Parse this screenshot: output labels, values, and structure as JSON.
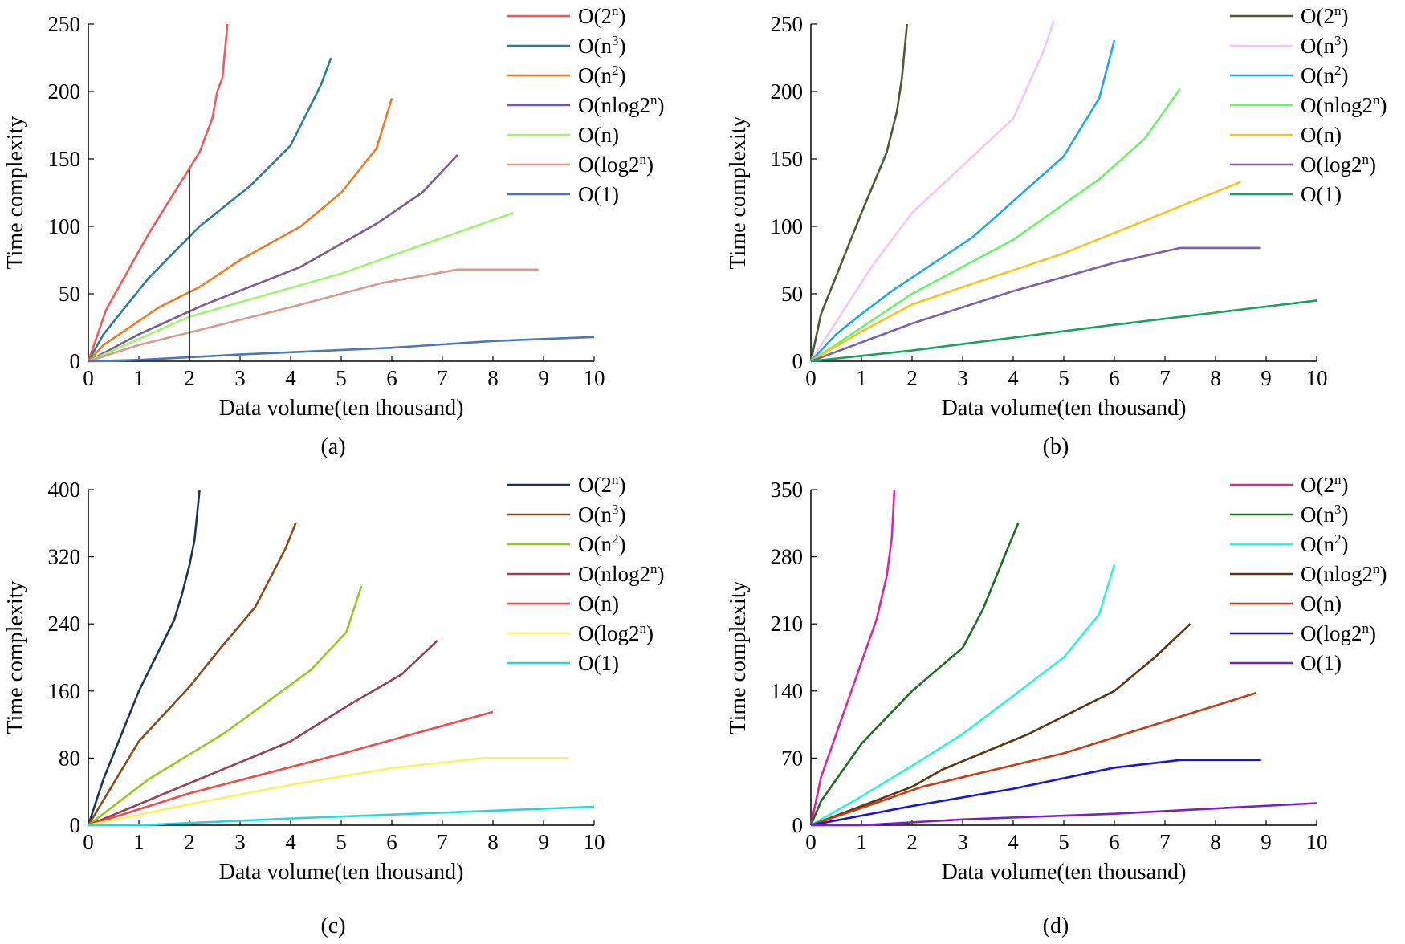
{
  "chart_data": [
    {
      "type": "line",
      "caption": "(a)",
      "xlabel": "Data volume(ten thousand)",
      "ylabel": "Time complexity",
      "xlim": [
        0,
        10
      ],
      "ylim": [
        0,
        250
      ],
      "xticks": [
        "0",
        "1",
        "2",
        "3",
        "4",
        "5",
        "6",
        "7",
        "8",
        "9",
        "10"
      ],
      "yticks": [
        0,
        50,
        100,
        150,
        200,
        250
      ],
      "annotations": [
        {
          "type": "vertical-line",
          "x": 2,
          "y_from": 0,
          "y_to": 142
        }
      ],
      "series": [
        {
          "name": "O(2ⁿ)",
          "base": "O(2",
          "sup": "n",
          "tail": ")",
          "color": "#f05a5a",
          "x": [
            0,
            0.35,
            1.2,
            2.2,
            2.45,
            2.55,
            2.65,
            2.75
          ],
          "y": [
            0,
            38,
            95,
            155,
            180,
            200,
            210,
            250
          ]
        },
        {
          "name": "O(n³)",
          "base": "O(n",
          "sup": "3",
          "tail": ")",
          "color": "#2b7e8c",
          "x": [
            0,
            0.3,
            1.2,
            2.2,
            3.2,
            4.0,
            4.6,
            4.8
          ],
          "y": [
            0,
            20,
            62,
            100,
            130,
            160,
            205,
            225
          ]
        },
        {
          "name": "O(n²)",
          "base": "O(n",
          "sup": "2",
          "tail": ")",
          "color": "#ee7a22",
          "x": [
            0,
            0.3,
            1.4,
            2.2,
            3.0,
            4.2,
            5.0,
            5.7,
            6.0
          ],
          "y": [
            0,
            12,
            40,
            55,
            75,
            100,
            125,
            158,
            195
          ]
        },
        {
          "name": "O(nlog2ⁿ)",
          "base": "O(nlog2",
          "sup": "n",
          "tail": ")",
          "color": "#7b5a9c",
          "x": [
            0,
            1.0,
            2.3,
            4.2,
            5.7,
            6.6,
            7.3
          ],
          "y": [
            0,
            20,
            42,
            70,
            102,
            125,
            153
          ]
        },
        {
          "name": "O(n)",
          "base": "O(n",
          "sup": "",
          "tail": ")",
          "color": "#9cf56a",
          "x": [
            0,
            2.0,
            5.0,
            8.4
          ],
          "y": [
            0,
            33,
            65,
            110
          ]
        },
        {
          "name": "O(log2ⁿ)",
          "base": "O(log2",
          "sup": "n",
          "tail": ")",
          "color": "#d99a8e",
          "x": [
            0,
            1.0,
            4.0,
            5.8,
            7.3,
            8.9
          ],
          "y": [
            0,
            12,
            40,
            58,
            68,
            68
          ]
        },
        {
          "name": "O(1)",
          "base": "O(1",
          "sup": "",
          "tail": ")",
          "color": "#4c76b5",
          "x": [
            0,
            1.0,
            3.0,
            6.0,
            8.0,
            10.0
          ],
          "y": [
            0,
            1,
            5,
            10,
            15,
            18
          ]
        }
      ]
    },
    {
      "type": "line",
      "caption": "(b)",
      "xlabel": "Data volume(ten thousand)",
      "ylabel": "Time complexity",
      "xlim": [
        0,
        10
      ],
      "ylim": [
        0,
        250
      ],
      "xticks": [
        "0",
        "1",
        "2",
        "3",
        "4",
        "5",
        "6",
        "7",
        "8",
        "9",
        "10"
      ],
      "yticks": [
        0,
        50,
        100,
        150,
        200,
        250
      ],
      "series": [
        {
          "name": "O(2ⁿ)",
          "base": "O(2",
          "sup": "n",
          "tail": ")",
          "color": "#4e5a30",
          "x": [
            0,
            0.2,
            1.0,
            1.5,
            1.7,
            1.8,
            1.9
          ],
          "y": [
            0,
            35,
            110,
            155,
            185,
            210,
            250
          ]
        },
        {
          "name": "O(n³)",
          "base": "O(n",
          "sup": "3",
          "tail": ")",
          "color": "#f8c5f2",
          "x": [
            0,
            0.6,
            1.2,
            2.0,
            3.0,
            4.0,
            4.6,
            4.8
          ],
          "y": [
            0,
            35,
            70,
            110,
            145,
            180,
            230,
            252
          ]
        },
        {
          "name": "O(n²)",
          "base": "O(n",
          "sup": "2",
          "tail": ")",
          "color": "#1eaae6",
          "x": [
            0,
            0.5,
            1.0,
            1.6,
            3.2,
            5.0,
            5.7,
            6.0
          ],
          "y": [
            0,
            20,
            35,
            52,
            92,
            152,
            195,
            238
          ]
        },
        {
          "name": "O(nlog2ⁿ)",
          "base": "O(nlog2",
          "sup": "n",
          "tail": ")",
          "color": "#6af26a",
          "x": [
            0,
            2.0,
            4.0,
            5.7,
            6.6,
            7.3
          ],
          "y": [
            0,
            50,
            90,
            135,
            165,
            202
          ]
        },
        {
          "name": "O(n)",
          "base": "O(n",
          "sup": "",
          "tail": ")",
          "color": "#f5c51d",
          "x": [
            0,
            1.0,
            2.0,
            3.0,
            5.0,
            8.5
          ],
          "y": [
            0,
            22,
            42,
            55,
            80,
            133
          ]
        },
        {
          "name": "O(log2ⁿ)",
          "base": "O(log2",
          "sup": "n",
          "tail": ")",
          "color": "#7a5fad",
          "x": [
            0,
            2.0,
            4.0,
            6.0,
            7.3,
            8.9
          ],
          "y": [
            0,
            28,
            52,
            73,
            84,
            84
          ]
        },
        {
          "name": "O(1)",
          "base": "O(1",
          "sup": "",
          "tail": ")",
          "color": "#16a35a",
          "x": [
            0,
            2.0,
            6.0,
            10.0
          ],
          "y": [
            0,
            8,
            27,
            45
          ]
        }
      ]
    },
    {
      "type": "line",
      "caption": "(c)",
      "xlabel": "Data volume(ten thousand)",
      "ylabel": "Time complexity",
      "xlim": [
        0,
        10
      ],
      "ylim": [
        0,
        400
      ],
      "xticks": [
        "0",
        "1",
        "2",
        "3",
        "4",
        "5",
        "6",
        "7",
        "8",
        "9",
        "10"
      ],
      "yticks": [
        0,
        80,
        160,
        240,
        320,
        400
      ],
      "series": [
        {
          "name": "O(2ⁿ)",
          "base": "O(2",
          "sup": "n",
          "tail": ")",
          "color": "#1f3557",
          "x": [
            0,
            0.3,
            1.0,
            1.7,
            1.85,
            2.0,
            2.1,
            2.2
          ],
          "y": [
            0,
            55,
            160,
            245,
            275,
            310,
            340,
            400
          ]
        },
        {
          "name": "O(n³)",
          "base": "O(n",
          "sup": "3",
          "tail": ")",
          "color": "#8c4a1a",
          "x": [
            0,
            1.0,
            2.0,
            2.6,
            3.3,
            3.9,
            4.1
          ],
          "y": [
            0,
            100,
            165,
            210,
            260,
            330,
            360
          ]
        },
        {
          "name": "O(n²)",
          "base": "O(n",
          "sup": "2",
          "tail": ")",
          "color": "#96c81e",
          "x": [
            0,
            1.2,
            2.7,
            4.4,
            5.1,
            5.4
          ],
          "y": [
            0,
            55,
            110,
            185,
            230,
            285
          ]
        },
        {
          "name": "O(nlog2ⁿ)",
          "base": "O(nlog2",
          "sup": "n",
          "tail": ")",
          "color": "#9c3e56",
          "x": [
            0,
            2.2,
            4.0,
            5.2,
            6.2,
            6.9
          ],
          "y": [
            0,
            55,
            100,
            145,
            180,
            220
          ]
        },
        {
          "name": "O(n)",
          "base": "O(n",
          "sup": "",
          "tail": ")",
          "color": "#f24a4a",
          "x": [
            0,
            2.0,
            5.0,
            8.0
          ],
          "y": [
            0,
            38,
            85,
            135
          ]
        },
        {
          "name": "O(log2ⁿ)",
          "base": "O(log2",
          "sup": "n",
          "tail": ")",
          "color": "#f5f55a",
          "x": [
            0,
            2.0,
            4.0,
            6.0,
            7.8,
            9.5
          ],
          "y": [
            0,
            25,
            48,
            68,
            80,
            80
          ]
        },
        {
          "name": "O(1)",
          "base": "O(1",
          "sup": "",
          "tail": ")",
          "color": "#22d8d8",
          "x": [
            0,
            1.0,
            4.0,
            7.0,
            10.0
          ],
          "y": [
            0,
            0,
            8,
            15,
            22
          ]
        }
      ]
    },
    {
      "type": "line",
      "caption": "(d)",
      "xlabel": "Data volume(ten thousand)",
      "ylabel": "Time complexity",
      "xlim": [
        0,
        10
      ],
      "ylim": [
        0,
        350
      ],
      "xticks": [
        "0",
        "1",
        "2",
        "3",
        "4",
        "5",
        "6",
        "7",
        "8",
        "9",
        "10"
      ],
      "yticks": [
        0,
        70,
        140,
        210,
        280,
        350
      ],
      "series": [
        {
          "name": "O(2ⁿ)",
          "base": "O(2",
          "sup": "n",
          "tail": ")",
          "color": "#e0249a",
          "x": [
            0,
            0.2,
            0.8,
            1.3,
            1.5,
            1.6,
            1.65
          ],
          "y": [
            0,
            50,
            140,
            215,
            260,
            300,
            350
          ]
        },
        {
          "name": "O(n³)",
          "base": "O(n",
          "sup": "3",
          "tail": ")",
          "color": "#1e6e1e",
          "x": [
            0,
            0.2,
            1.0,
            2.0,
            3.0,
            3.4,
            3.9,
            4.1
          ],
          "y": [
            0,
            25,
            85,
            140,
            185,
            225,
            290,
            315
          ]
        },
        {
          "name": "O(n²)",
          "base": "O(n",
          "sup": "2",
          "tail": ")",
          "color": "#2cf5d0",
          "x": [
            0,
            1.0,
            2.0,
            3.0,
            4.0,
            5.0,
            5.7,
            6.0
          ],
          "y": [
            0,
            30,
            62,
            95,
            135,
            175,
            220,
            272
          ]
        },
        {
          "name": "O(nlog2ⁿ)",
          "base": "O(nlog2",
          "sup": "n",
          "tail": ")",
          "color": "#5a3510",
          "x": [
            0,
            1.0,
            2.0,
            2.6,
            4.3,
            6.0,
            6.8,
            7.5
          ],
          "y": [
            0,
            20,
            40,
            58,
            95,
            140,
            175,
            210
          ]
        },
        {
          "name": "O(n)",
          "base": "O(n",
          "sup": "",
          "tail": ")",
          "color": "#c83c14",
          "x": [
            0,
            1.0,
            2.2,
            5.0,
            8.8
          ],
          "y": [
            0,
            18,
            40,
            75,
            138
          ]
        },
        {
          "name": "O(log2ⁿ)",
          "base": "O(log2",
          "sup": "n",
          "tail": ")",
          "color": "#1414e6",
          "x": [
            0,
            2.0,
            4.0,
            6.0,
            7.3,
            8.9
          ],
          "y": [
            0,
            20,
            38,
            60,
            68,
            68
          ]
        },
        {
          "name": "O(1)",
          "base": "O(1",
          "sup": "",
          "tail": ")",
          "color": "#7a1ec8",
          "x": [
            0,
            1.0,
            3.0,
            6.0,
            10.0
          ],
          "y": [
            0,
            0,
            6,
            12,
            23
          ]
        }
      ]
    }
  ]
}
